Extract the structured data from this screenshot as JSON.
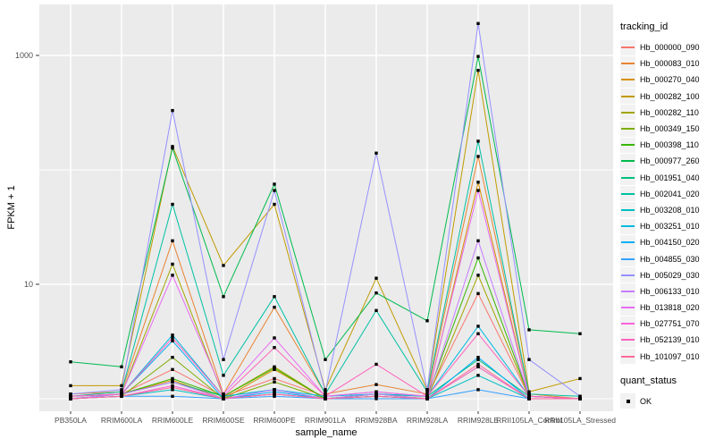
{
  "chart_data": {
    "type": "line",
    "title": "",
    "xlabel": "sample_name",
    "ylabel": "FPKM + 1",
    "y_scale": "log10",
    "ylim": [
      0.9,
      2400
    ],
    "y_axis_ticks": [
      {
        "value": 1000,
        "label": "1000"
      },
      {
        "value": 10,
        "label": "10"
      }
    ],
    "y_gridlines_major": [
      10,
      1000
    ],
    "y_gridlines_minor": [
      1,
      100
    ],
    "grid": "on",
    "grid_color": "#FFFFFF",
    "panel_bg": "#EBEBEB",
    "point_color": "#000000",
    "point_shape": "square",
    "legend_position": "right",
    "categories": [
      "PB350LA",
      "RRIM600LA",
      "RRIM600LE",
      "RRIM600SE",
      "RRIM600PE",
      "RRIM901LA",
      "RRIM928BA",
      "RRIM928LA",
      "RRIM928LE",
      "RRII105LA_Control",
      "RRII105LA_Stressed"
    ],
    "legends": [
      {
        "title": "tracking_id"
      },
      {
        "title": "quant_status",
        "items": [
          {
            "label": "OK",
            "glyph": "black-square"
          }
        ]
      }
    ],
    "series": [
      {
        "name": "Hb_000000_090",
        "color": "#F8766D",
        "values": [
          1.05,
          1.1,
          1.8,
          1.05,
          1.5,
          1.05,
          1.15,
          1.05,
          8.3,
          1.05,
          1.0
        ]
      },
      {
        "name": "Hb_000083_010",
        "color": "#EA8331",
        "values": [
          1.1,
          1.15,
          24,
          1.1,
          6.3,
          1.1,
          1.33,
          1.1,
          131,
          1.1,
          1.0
        ]
      },
      {
        "name": "Hb_000270_040",
        "color": "#D89000",
        "values": [
          1.0,
          1.1,
          1.45,
          1.0,
          1.8,
          1.0,
          1.1,
          1.0,
          78,
          1.05,
          1.0
        ]
      },
      {
        "name": "Hb_000282_100",
        "color": "#C09B00",
        "values": [
          1.3,
          1.3,
          160,
          14.6,
          50,
          1.2,
          11.3,
          1.2,
          740,
          1.15,
          1.5
        ]
      },
      {
        "name": "Hb_000282_110",
        "color": "#A3A500",
        "values": [
          1.05,
          1.1,
          15,
          1.05,
          1.9,
          1.0,
          1.1,
          1.0,
          12,
          1.05,
          1.0
        ]
      },
      {
        "name": "Hb_000349_150",
        "color": "#7CAE00",
        "values": [
          1.0,
          1.05,
          2.3,
          1.0,
          1.4,
          1.0,
          1.05,
          1.0,
          1.9,
          1.0,
          1.0
        ]
      },
      {
        "name": "Hb_000398_110",
        "color": "#39B600",
        "values": [
          1.0,
          1.1,
          1.5,
          1.05,
          1.85,
          1.0,
          1.1,
          1.05,
          17,
          1.05,
          1.0
        ]
      },
      {
        "name": "Hb_000977_260",
        "color": "#00BB4E",
        "values": [
          2.1,
          1.9,
          155,
          7.8,
          75,
          2.2,
          8.4,
          4.8,
          980,
          4.0,
          3.7
        ]
      },
      {
        "name": "Hb_001951_040",
        "color": "#00BF7D",
        "values": [
          1.05,
          1.1,
          1.4,
          1.05,
          1.2,
          1.0,
          1.1,
          1.05,
          2.2,
          1.05,
          1.0
        ]
      },
      {
        "name": "Hb_002041_020",
        "color": "#00C1A3",
        "values": [
          1.05,
          1.15,
          50,
          1.6,
          7.8,
          1.1,
          5.9,
          1.15,
          178,
          1.1,
          1.05
        ]
      },
      {
        "name": "Hb_003208_010",
        "color": "#00BFC4",
        "values": [
          1.0,
          1.05,
          1.2,
          1.0,
          1.1,
          1.0,
          1.05,
          1.0,
          1.6,
          1.0,
          1.0
        ]
      },
      {
        "name": "Hb_003251_010",
        "color": "#00BAE0",
        "values": [
          1.05,
          1.1,
          3.6,
          1.05,
          1.2,
          1.05,
          1.1,
          1.05,
          4.3,
          1.05,
          1.0
        ]
      },
      {
        "name": "Hb_004150_020",
        "color": "#00B0F6",
        "values": [
          1.0,
          1.1,
          3.2,
          1.0,
          1.15,
          1.0,
          1.05,
          1.0,
          2.3,
          1.0,
          1.0
        ]
      },
      {
        "name": "Hb_004855_030",
        "color": "#35A2FF",
        "values": [
          1.0,
          1.05,
          1.05,
          1.0,
          1.05,
          1.0,
          1.0,
          1.0,
          1.2,
          1.0,
          1.0
        ]
      },
      {
        "name": "Hb_005029_030",
        "color": "#9590FF",
        "values": [
          1.1,
          1.2,
          330,
          2.2,
          66,
          1.15,
          140,
          1.2,
          1900,
          2.2,
          1.05
        ]
      },
      {
        "name": "Hb_006133_010",
        "color": "#C77CFF",
        "values": [
          1.0,
          1.1,
          1.4,
          1.0,
          1.2,
          1.0,
          1.1,
          1.0,
          24,
          1.05,
          1.0
        ]
      },
      {
        "name": "Hb_013818_020",
        "color": "#E76BF3",
        "values": [
          1.05,
          1.1,
          12,
          1.1,
          3.4,
          1.05,
          1.15,
          1.05,
          66,
          1.05,
          1.0
        ]
      },
      {
        "name": "Hb_027751_070",
        "color": "#FA62DB",
        "values": [
          1.0,
          1.05,
          1.3,
          1.0,
          1.1,
          1.0,
          1.05,
          1.0,
          1.9,
          1.0,
          1.0
        ]
      },
      {
        "name": "Hb_052139_010",
        "color": "#FF62BC",
        "values": [
          1.05,
          1.1,
          3.4,
          1.05,
          2.8,
          1.05,
          2.0,
          1.05,
          3.7,
          1.05,
          1.0
        ]
      },
      {
        "name": "Hb_101097_010",
        "color": "#FF6A98",
        "values": [
          1.0,
          1.05,
          1.26,
          1.0,
          1.1,
          1.0,
          1.05,
          1.0,
          2.0,
          1.0,
          1.0
        ]
      }
    ]
  }
}
